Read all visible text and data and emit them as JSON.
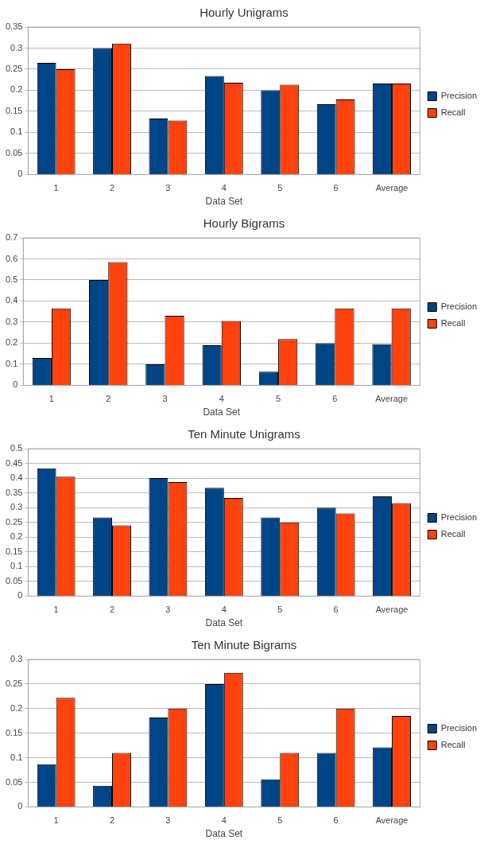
{
  "chart_data": [
    {
      "type": "bar",
      "title": "Hourly Unigrams",
      "xlabel": "Data Set",
      "categories": [
        "1",
        "2",
        "3",
        "4",
        "5",
        "6",
        "Average"
      ],
      "series": [
        {
          "name": "Precision",
          "color": "#004586",
          "values": [
            0.265,
            0.3,
            0.133,
            0.234,
            0.2,
            0.167,
            0.216
          ]
        },
        {
          "name": "Recall",
          "color": "#ff420e",
          "values": [
            0.25,
            0.311,
            0.128,
            0.218,
            0.213,
            0.178,
            0.216
          ]
        }
      ],
      "ylim": [
        0,
        0.35
      ],
      "yticks": [
        0,
        0.05,
        0.1,
        0.15,
        0.2,
        0.25,
        0.3,
        0.35
      ],
      "grid": "y",
      "legend": "right"
    },
    {
      "type": "bar",
      "title": "Hourly Bigrams",
      "xlabel": "Data Set",
      "categories": [
        "1",
        "2",
        "3",
        "4",
        "5",
        "6",
        "Average"
      ],
      "series": [
        {
          "name": "Precision",
          "color": "#004586",
          "values": [
            0.13,
            0.5,
            0.1,
            0.19,
            0.065,
            0.2,
            0.195
          ]
        },
        {
          "name": "Recall",
          "color": "#ff420e",
          "values": [
            0.365,
            0.585,
            0.33,
            0.305,
            0.22,
            0.365,
            0.365
          ]
        }
      ],
      "ylim": [
        0,
        0.7
      ],
      "yticks": [
        0,
        0.1,
        0.2,
        0.3,
        0.4,
        0.5,
        0.6,
        0.7
      ],
      "grid": "y",
      "legend": "right"
    },
    {
      "type": "bar",
      "title": "Ten Minute Unigrams",
      "xlabel": "Data Set",
      "categories": [
        "1",
        "2",
        "3",
        "4",
        "5",
        "6",
        "Average"
      ],
      "series": [
        {
          "name": "Precision",
          "color": "#004586",
          "values": [
            0.433,
            0.267,
            0.4,
            0.367,
            0.267,
            0.3,
            0.338
          ]
        },
        {
          "name": "Recall",
          "color": "#ff420e",
          "values": [
            0.405,
            0.24,
            0.387,
            0.333,
            0.25,
            0.28,
            0.315
          ]
        }
      ],
      "ylim": [
        0,
        0.5
      ],
      "yticks": [
        0,
        0.05,
        0.1,
        0.15,
        0.2,
        0.25,
        0.3,
        0.35,
        0.4,
        0.45,
        0.5
      ],
      "grid": "y",
      "legend": "right"
    },
    {
      "type": "bar",
      "title": "Ten Minute Bigrams",
      "xlabel": "Data Set",
      "categories": [
        "1",
        "2",
        "3",
        "4",
        "5",
        "6",
        "Average"
      ],
      "series": [
        {
          "name": "Precision",
          "color": "#004586",
          "values": [
            0.087,
            0.043,
            0.182,
            0.25,
            0.056,
            0.11,
            0.121
          ]
        },
        {
          "name": "Recall",
          "color": "#ff420e",
          "values": [
            0.222,
            0.11,
            0.2,
            0.273,
            0.11,
            0.2,
            0.185
          ]
        }
      ],
      "ylim": [
        0,
        0.3
      ],
      "yticks": [
        0,
        0.05,
        0.1,
        0.15,
        0.2,
        0.25,
        0.3
      ],
      "grid": "y",
      "legend": "right"
    }
  ]
}
